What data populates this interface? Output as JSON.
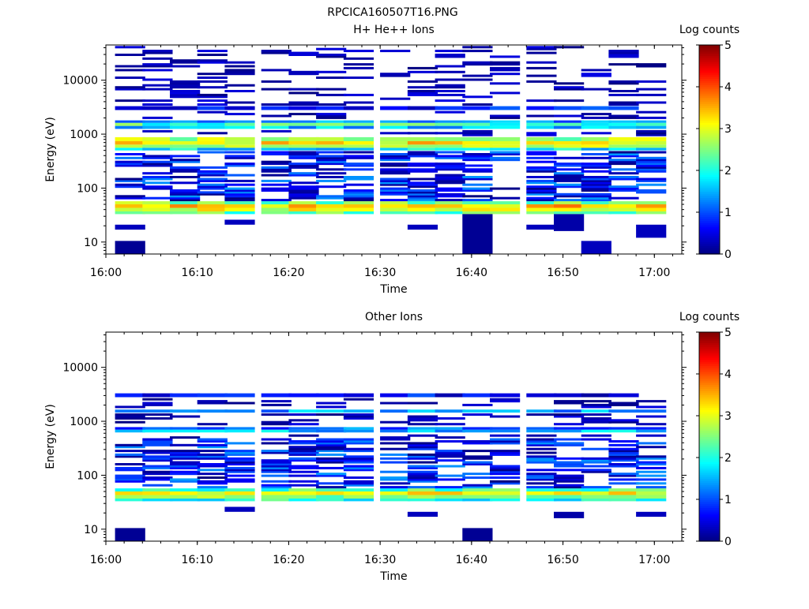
{
  "figure_title": "RPCICA160507T16.PNG",
  "chart_data": [
    {
      "type": "heatmap",
      "title": "H+ He++ Ions",
      "xlabel": "Time",
      "ylabel": "Energy (eV)",
      "colorbar_label": "Log counts",
      "colorbar_ticks": [
        "0",
        "1",
        "2",
        "3",
        "4",
        "5"
      ],
      "colorbar_range": [
        0,
        5
      ],
      "colormap": "jet",
      "x_ticks": [
        "16:00",
        "16:10",
        "16:20",
        "16:30",
        "16:40",
        "16:50",
        "17:00"
      ],
      "y_ticks": [
        "10",
        "100",
        "1000",
        "10000"
      ],
      "y_scale": "log",
      "y_range_eV": [
        6,
        45000
      ],
      "x_range": [
        "16:00",
        "17:03"
      ],
      "time_bins_start": [
        "16:01",
        "16:04",
        "16:07",
        "16:10",
        "16:13",
        "16:17",
        "16:20",
        "16:23",
        "16:26",
        "16:30",
        "16:33",
        "16:36",
        "16:39",
        "16:42",
        "16:46",
        "16:49",
        "16:52",
        "16:55",
        "16:58"
      ],
      "bands": [
        {
          "e_from": 33,
          "e_to": 37,
          "level": 2.3
        },
        {
          "e_from": 37,
          "e_to": 43,
          "level": 3.0
        },
        {
          "e_from": 43,
          "e_to": 50,
          "level": 3.4
        },
        {
          "e_from": 50,
          "e_to": 57,
          "level": 2.5
        },
        {
          "e_from": 500,
          "e_to": 560,
          "level": 1.7
        },
        {
          "e_from": 560,
          "e_to": 640,
          "level": 2.8
        },
        {
          "e_from": 640,
          "e_to": 740,
          "level": 3.2
        },
        {
          "e_from": 740,
          "e_to": 880,
          "level": 2.7
        },
        {
          "e_from": 1250,
          "e_to": 1420,
          "level": 1.6
        },
        {
          "e_from": 1420,
          "e_to": 1620,
          "level": 2.2
        },
        {
          "e_from": 1620,
          "e_to": 1800,
          "level": 1.3
        },
        {
          "e_from": 2800,
          "e_to": 3300,
          "level": 0.7
        }
      ],
      "low_energy_blocks": [
        {
          "bin": 0,
          "e_from": 6,
          "e_to": 10.5,
          "level": 0.1
        },
        {
          "bin": 0,
          "e_from": 17,
          "e_to": 21,
          "level": 0.3
        },
        {
          "bin": 4,
          "e_from": 21,
          "e_to": 26,
          "level": 0.3
        },
        {
          "bin": 10,
          "e_from": 17,
          "e_to": 21,
          "level": 0.3
        },
        {
          "bin": 12,
          "e_from": 6,
          "e_to": 33,
          "level": 0.1
        },
        {
          "bin": 14,
          "e_from": 17,
          "e_to": 21,
          "level": 0.3
        },
        {
          "bin": 15,
          "e_from": 16,
          "e_to": 33,
          "level": 0.2
        },
        {
          "bin": 16,
          "e_from": 6,
          "e_to": 10.5,
          "level": 0.3
        },
        {
          "bin": 18,
          "e_from": 12,
          "e_to": 21,
          "level": 0.3
        }
      ]
    },
    {
      "type": "heatmap",
      "title": "Other Ions",
      "xlabel": "Time",
      "ylabel": "Energy (eV)",
      "colorbar_label": "Log counts",
      "colorbar_ticks": [
        "0",
        "1",
        "2",
        "3",
        "4",
        "5"
      ],
      "colorbar_range": [
        0,
        5
      ],
      "colormap": "jet",
      "x_ticks": [
        "16:00",
        "16:10",
        "16:20",
        "16:30",
        "16:40",
        "16:50",
        "17:00"
      ],
      "y_ticks": [
        "10",
        "100",
        "1000",
        "10000"
      ],
      "y_scale": "log",
      "y_range_eV": [
        6,
        45000
      ],
      "x_range": [
        "16:00",
        "17:03"
      ],
      "time_bins_start": [
        "16:01",
        "16:04",
        "16:07",
        "16:10",
        "16:13",
        "16:17",
        "16:20",
        "16:23",
        "16:26",
        "16:30",
        "16:33",
        "16:36",
        "16:39",
        "16:42",
        "16:46",
        "16:49",
        "16:52",
        "16:55",
        "16:58"
      ],
      "bands": [
        {
          "e_from": 33,
          "e_to": 37,
          "level": 2.0
        },
        {
          "e_from": 37,
          "e_to": 43,
          "level": 2.6
        },
        {
          "e_from": 43,
          "e_to": 50,
          "level": 3.1
        },
        {
          "e_from": 50,
          "e_to": 57,
          "level": 2.2
        },
        {
          "e_from": 620,
          "e_to": 700,
          "level": 1.6
        },
        {
          "e_from": 700,
          "e_to": 780,
          "level": 1.1
        },
        {
          "e_from": 1450,
          "e_to": 1650,
          "level": 1.4
        },
        {
          "e_from": 2800,
          "e_to": 3300,
          "level": 0.6
        }
      ],
      "low_energy_blocks": [
        {
          "bin": 0,
          "e_from": 6,
          "e_to": 10.5,
          "level": 0.1
        },
        {
          "bin": 4,
          "e_from": 21,
          "e_to": 26,
          "level": 0.3
        },
        {
          "bin": 10,
          "e_from": 17,
          "e_to": 21,
          "level": 0.3
        },
        {
          "bin": 12,
          "e_from": 6,
          "e_to": 10.5,
          "level": 0.1
        },
        {
          "bin": 15,
          "e_from": 16,
          "e_to": 21,
          "level": 0.2
        },
        {
          "bin": 18,
          "e_from": 17,
          "e_to": 21,
          "level": 0.3
        }
      ]
    }
  ]
}
